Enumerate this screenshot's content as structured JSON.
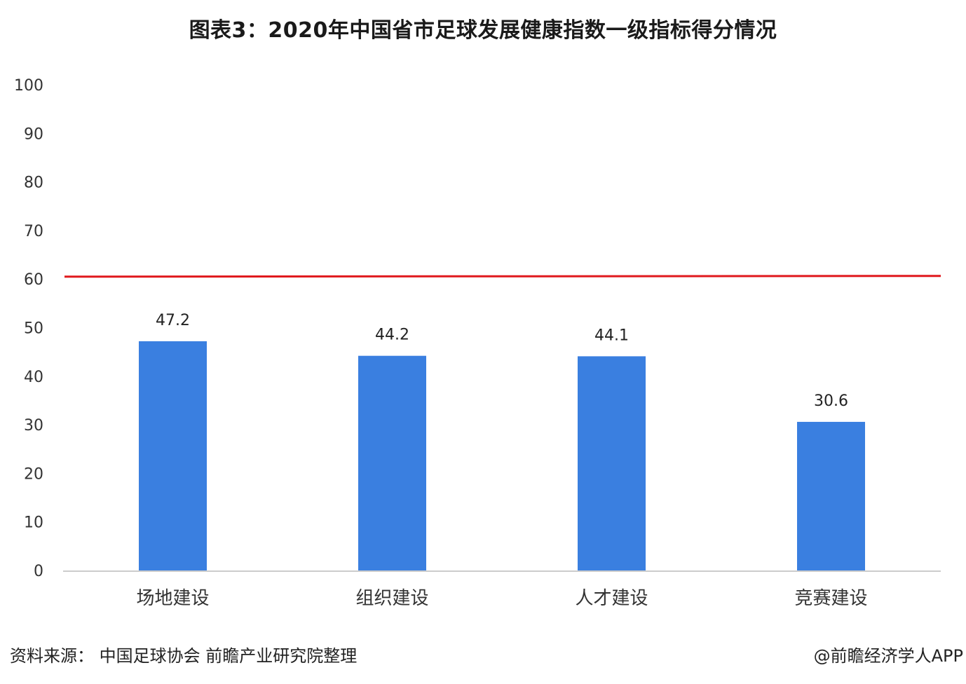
{
  "chart_data": {
    "type": "bar",
    "title": "图表3：2020年中国省市足球发展健康指数一级指标得分情况",
    "categories": [
      "场地建设",
      "组织建设",
      "人才建设",
      "竞赛建设"
    ],
    "values": [
      47.2,
      44.2,
      44.1,
      30.6
    ],
    "value_labels": [
      "47.2",
      "44.2",
      "44.1",
      "30.6"
    ],
    "ylim": [
      0,
      100
    ],
    "yticks": [
      "0",
      "10",
      "20",
      "30",
      "40",
      "50",
      "60",
      "70",
      "80",
      "90",
      "100"
    ],
    "reference_line": 60.5,
    "grid": false,
    "legend": "none",
    "xlabel": "",
    "ylabel": ""
  },
  "colors": {
    "bar": "#3a7fe0",
    "reference_line": "#e0191d",
    "axis": "#cccccc"
  },
  "footer": {
    "source": "资料来源：  中国足球协会 前瞻产业研究院整理",
    "credit": "@前瞻经济学人APP"
  }
}
